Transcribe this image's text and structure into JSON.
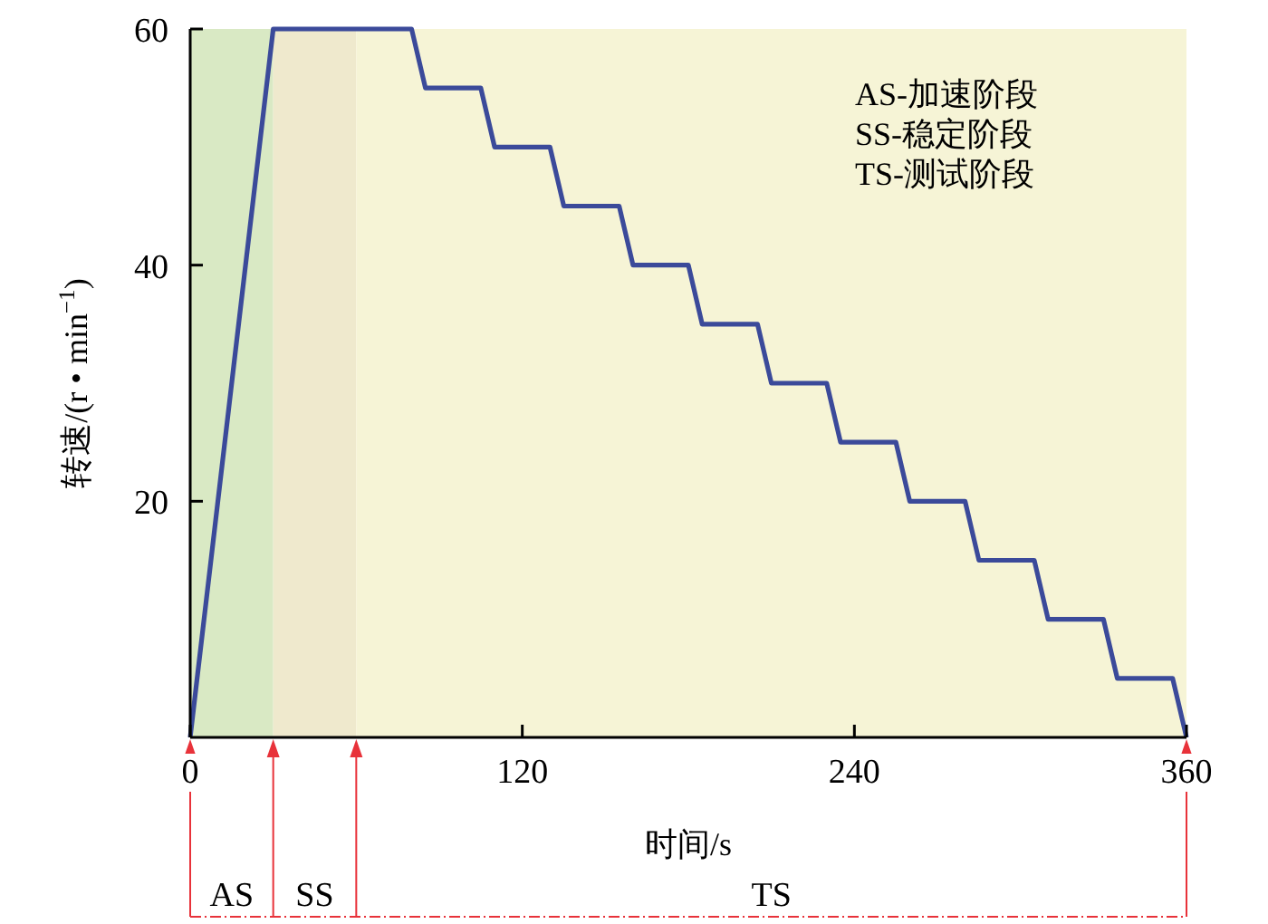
{
  "chart_data": {
    "type": "line",
    "xlabel": "时间/s",
    "ylabel": "转速/(r • min$^{−1}$)",
    "x": [
      0,
      30,
      80,
      85,
      105,
      110,
      130,
      135,
      155,
      160,
      180,
      185,
      205,
      210,
      230,
      235,
      255,
      260,
      280,
      285,
      305,
      310,
      330,
      335,
      355,
      360
    ],
    "series": [
      {
        "color": "#3b4a9a",
        "values": [
          0,
          60,
          60,
          55,
          55,
          50,
          50,
          45,
          45,
          40,
          40,
          35,
          35,
          30,
          30,
          25,
          25,
          20,
          20,
          15,
          15,
          10,
          10,
          5,
          5,
          0
        ]
      }
    ],
    "xlim": [
      0,
      360
    ],
    "ylim": [
      0,
      60
    ],
    "xticks": [
      0,
      120,
      240,
      360
    ],
    "yticks": [
      20,
      40,
      60
    ],
    "bands": [
      {
        "axis": "x",
        "from": 0,
        "to": 30,
        "color": "#d9e9c4"
      },
      {
        "axis": "x",
        "from": 30,
        "to": 60,
        "color": "#efe9cd"
      },
      {
        "axis": "x",
        "from": 60,
        "to": 360,
        "color": "#f6f4d6"
      }
    ],
    "annotations": [
      "AS-加速阶段",
      "SS-稳定阶段",
      "TS-测试阶段",
      "AS",
      "SS",
      "TS"
    ],
    "grid": false,
    "marker": "none",
    "line_style": "solid"
  }
}
